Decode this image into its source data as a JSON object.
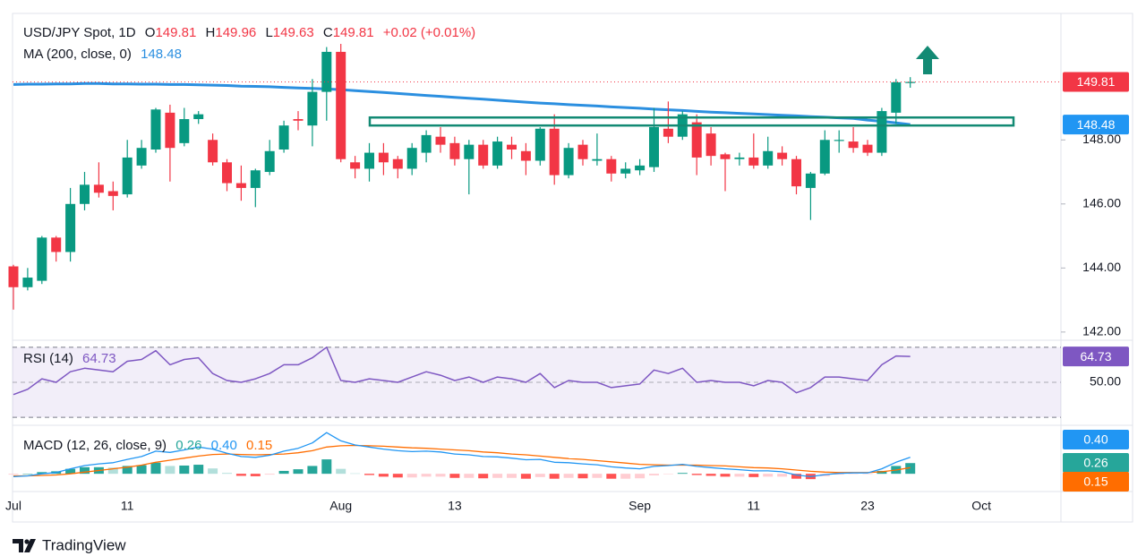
{
  "chart_data": [
    {
      "type": "candlestick",
      "symbol": "USD/JPY Spot, 1D",
      "ohlc_prefixes": [
        "O",
        "H",
        "L",
        "C"
      ],
      "change": "+0.02 (+0.01%)",
      "ma_label": "MA (200, close, 0)",
      "categories": [
        "Jul",
        null,
        null,
        null,
        null,
        null,
        null,
        null,
        "11",
        null,
        null,
        null,
        null,
        null,
        null,
        null,
        null,
        null,
        null,
        null,
        null,
        null,
        null,
        "Aug",
        null,
        null,
        null,
        null,
        null,
        null,
        null,
        "13",
        null,
        null,
        null,
        null,
        null,
        null,
        null,
        null,
        null,
        null,
        null,
        null,
        "Sep",
        null,
        null,
        null,
        null,
        null,
        null,
        null,
        "11",
        null,
        null,
        null,
        null,
        null,
        null,
        null,
        "23",
        null,
        null,
        null,
        null,
        null,
        null,
        null,
        "Oct",
        null,
        null,
        null,
        null,
        null
      ],
      "open": [
        144.05,
        143.4,
        143.6,
        144.95,
        144.5,
        146.0,
        146.6,
        146.4,
        146.3,
        147.2,
        147.7,
        148.85,
        147.9,
        148.65,
        148.0,
        147.3,
        146.65,
        146.5,
        147.0,
        147.7,
        148.65,
        148.45,
        149.5,
        150.75,
        147.3,
        147.1,
        147.6,
        147.4,
        147.1,
        147.6,
        148.1,
        147.9,
        147.4,
        147.85,
        147.2,
        147.85,
        147.65,
        147.35,
        148.35,
        146.9,
        147.85,
        147.35,
        147.4,
        146.95,
        147.05,
        147.15,
        148.35,
        148.1,
        148.55,
        148.2,
        147.55,
        147.4,
        147.45,
        147.2,
        147.6,
        147.4,
        146.5,
        146.95,
        148.0,
        147.95,
        147.85,
        147.6,
        148.85,
        149.81,
        null,
        null,
        null,
        null,
        null,
        null,
        null,
        null,
        null,
        null
      ],
      "high": [
        144.1,
        144.0,
        145.0,
        145.0,
        146.5,
        147.0,
        147.3,
        146.7,
        148.0,
        148.0,
        149.0,
        149.1,
        149.0,
        148.9,
        148.2,
        147.4,
        147.2,
        147.1,
        148.0,
        148.6,
        148.9,
        149.9,
        150.9,
        151.0,
        147.5,
        147.9,
        147.9,
        147.5,
        147.9,
        148.3,
        148.4,
        148.1,
        148.0,
        148.0,
        148.1,
        148.1,
        147.9,
        148.4,
        148.8,
        147.9,
        148.0,
        148.2,
        147.5,
        147.3,
        147.4,
        149.0,
        149.2,
        148.9,
        148.8,
        148.4,
        147.6,
        147.6,
        148.2,
        148.1,
        147.8,
        147.5,
        147.0,
        148.3,
        148.3,
        148.4,
        148.0,
        149.0,
        149.9,
        149.96,
        null,
        null,
        null,
        null,
        null,
        null,
        null,
        null,
        null,
        null
      ],
      "low": [
        142.7,
        143.3,
        143.5,
        144.2,
        144.2,
        145.8,
        146.2,
        145.8,
        146.2,
        147.1,
        147.6,
        146.7,
        147.8,
        148.5,
        147.2,
        146.4,
        146.1,
        145.9,
        146.9,
        147.6,
        148.3,
        147.8,
        148.6,
        147.3,
        146.8,
        146.7,
        146.9,
        146.8,
        146.9,
        147.3,
        147.6,
        147.2,
        146.3,
        147.1,
        147.1,
        147.4,
        146.9,
        147.2,
        146.6,
        146.8,
        147.2,
        147.2,
        146.7,
        146.8,
        146.9,
        147.0,
        147.9,
        148.0,
        146.9,
        147.2,
        146.4,
        147.2,
        147.1,
        147.1,
        147.2,
        146.3,
        145.5,
        146.9,
        147.6,
        147.6,
        147.5,
        147.5,
        148.5,
        149.63,
        null,
        null,
        null,
        null,
        null,
        null,
        null,
        null,
        null,
        null
      ],
      "close": [
        143.4,
        143.7,
        144.95,
        144.5,
        146.0,
        146.6,
        146.35,
        146.25,
        147.45,
        147.75,
        148.95,
        147.75,
        148.65,
        148.8,
        147.3,
        146.65,
        146.5,
        147.05,
        147.65,
        148.45,
        148.6,
        149.5,
        150.75,
        147.4,
        147.1,
        147.6,
        147.3,
        147.1,
        147.75,
        148.15,
        147.85,
        147.4,
        147.85,
        147.2,
        147.95,
        147.7,
        147.35,
        148.35,
        146.9,
        147.75,
        147.4,
        147.4,
        146.95,
        147.1,
        147.2,
        148.4,
        148.1,
        148.8,
        147.45,
        147.5,
        147.4,
        147.45,
        147.2,
        147.65,
        147.4,
        146.55,
        146.95,
        148.0,
        148.0,
        147.75,
        147.6,
        148.9,
        149.8,
        149.81,
        null,
        null,
        null,
        null,
        null,
        null,
        null,
        null,
        null,
        null
      ],
      "ma": [
        149.73,
        149.74,
        149.74,
        149.75,
        149.75,
        149.76,
        149.76,
        149.75,
        149.75,
        149.74,
        149.74,
        149.73,
        149.73,
        149.72,
        149.71,
        149.7,
        149.68,
        149.67,
        149.66,
        149.64,
        149.62,
        149.61,
        149.59,
        149.57,
        149.54,
        149.51,
        149.48,
        149.45,
        149.42,
        149.39,
        149.36,
        149.33,
        149.3,
        149.27,
        149.24,
        149.21,
        149.18,
        149.15,
        149.13,
        149.1,
        149.08,
        149.06,
        149.03,
        149.01,
        148.99,
        148.96,
        148.94,
        148.92,
        148.89,
        148.87,
        148.85,
        148.83,
        148.81,
        148.79,
        148.77,
        148.75,
        148.73,
        148.71,
        148.69,
        148.67,
        148.62,
        148.58,
        148.53,
        148.48,
        null,
        null,
        null,
        null,
        null,
        null,
        null,
        null,
        null,
        null
      ],
      "zone": [
        148.45,
        148.7
      ],
      "ylim": [
        141.8,
        151.95
      ],
      "yticks": [
        {
          "value": 142,
          "label": "142.00"
        },
        {
          "value": 144,
          "label": "144.00"
        },
        {
          "value": 146,
          "label": "146.00"
        },
        {
          "value": 148,
          "label": "148.00"
        }
      ],
      "colors": {
        "up": "#089981",
        "down": "#f23645",
        "ma": "#2b8fe0",
        "zone": "#138a74",
        "last_price": "#f23645"
      }
    },
    {
      "type": "line",
      "title": "RSI (14)",
      "values": [
        43,
        46,
        52,
        50,
        56,
        58,
        57,
        56,
        62,
        63,
        68,
        60,
        63,
        64,
        55,
        51,
        50,
        52,
        55,
        60,
        60,
        64,
        70,
        51,
        50,
        52,
        51,
        50,
        53,
        56,
        54,
        51,
        53,
        50,
        53,
        52,
        50,
        55,
        47,
        51,
        50,
        50,
        47,
        48,
        49,
        57,
        55,
        58,
        50,
        51,
        50,
        50,
        48,
        51,
        50,
        44,
        47,
        53,
        53,
        52,
        51,
        60,
        65,
        64.73,
        null,
        null,
        null,
        null,
        null,
        null,
        null,
        null,
        null,
        null
      ],
      "color": "#7e57c2",
      "levels": [
        30,
        70
      ],
      "ylim": [
        27,
        74
      ],
      "yticks": [
        {
          "value": 50,
          "label": "50.00"
        }
      ]
    },
    {
      "type": "macd",
      "title": "MACD (12, 26, close, 9)",
      "series": [
        {
          "name": "Histogram",
          "values": [
            -0.02,
            0.0,
            0.04,
            0.06,
            0.12,
            0.16,
            0.16,
            0.15,
            0.19,
            0.21,
            0.27,
            0.19,
            0.2,
            0.22,
            0.13,
            0.02,
            -0.05,
            -0.06,
            -0.02,
            0.07,
            0.11,
            0.19,
            0.35,
            0.12,
            0.01,
            -0.03,
            -0.07,
            -0.09,
            -0.09,
            -0.07,
            -0.07,
            -0.1,
            -0.1,
            -0.11,
            -0.1,
            -0.1,
            -0.12,
            -0.08,
            -0.12,
            -0.1,
            -0.11,
            -0.1,
            -0.12,
            -0.12,
            -0.11,
            -0.04,
            -0.01,
            0.02,
            -0.03,
            -0.05,
            -0.07,
            -0.07,
            -0.08,
            -0.07,
            -0.07,
            -0.12,
            -0.13,
            -0.06,
            -0.02,
            -0.01,
            -0.01,
            0.07,
            0.19,
            0.26,
            null,
            null,
            null,
            null,
            null,
            null,
            null,
            null,
            null,
            null
          ]
        },
        {
          "name": "MACD",
          "color": "#2196f3",
          "values": [
            -0.07,
            -0.05,
            0.0,
            0.03,
            0.12,
            0.2,
            0.24,
            0.27,
            0.35,
            0.42,
            0.55,
            0.52,
            0.58,
            0.65,
            0.6,
            0.5,
            0.42,
            0.4,
            0.45,
            0.55,
            0.62,
            0.75,
            1.0,
            0.8,
            0.7,
            0.65,
            0.6,
            0.56,
            0.54,
            0.55,
            0.53,
            0.48,
            0.46,
            0.42,
            0.41,
            0.38,
            0.34,
            0.35,
            0.28,
            0.27,
            0.24,
            0.22,
            0.17,
            0.14,
            0.12,
            0.18,
            0.2,
            0.23,
            0.18,
            0.15,
            0.12,
            0.1,
            0.07,
            0.07,
            0.05,
            -0.03,
            -0.07,
            -0.02,
            0.01,
            0.02,
            0.02,
            0.12,
            0.28,
            0.4,
            null,
            null,
            null,
            null,
            null,
            null,
            null,
            null,
            null,
            null
          ]
        },
        {
          "name": "Signal",
          "color": "#ff6d00",
          "values": [
            -0.05,
            -0.05,
            -0.04,
            -0.03,
            0.0,
            0.04,
            0.08,
            0.12,
            0.16,
            0.21,
            0.28,
            0.33,
            0.38,
            0.43,
            0.47,
            0.48,
            0.47,
            0.46,
            0.47,
            0.48,
            0.51,
            0.56,
            0.65,
            0.68,
            0.69,
            0.68,
            0.67,
            0.65,
            0.63,
            0.62,
            0.6,
            0.58,
            0.56,
            0.53,
            0.51,
            0.48,
            0.46,
            0.43,
            0.4,
            0.37,
            0.35,
            0.32,
            0.29,
            0.26,
            0.23,
            0.22,
            0.21,
            0.21,
            0.21,
            0.2,
            0.19,
            0.17,
            0.15,
            0.14,
            0.12,
            0.09,
            0.06,
            0.04,
            0.03,
            0.03,
            0.03,
            0.05,
            0.09,
            0.15,
            null,
            null,
            null,
            null,
            null,
            null,
            null,
            null,
            null,
            null
          ]
        }
      ],
      "readout": [
        0.26,
        {
          "value": 0.4,
          "label": "0.40"
        },
        0.15
      ],
      "hist_colors": {
        "grow_pos": "#26a69a",
        "fall_pos": "#b2dfdb",
        "grow_neg": "#ffcdd2",
        "fall_neg": "#ff5252"
      },
      "ylim": [
        -0.41,
        1.07
      ]
    }
  ],
  "footer": {
    "brand": "TradingView"
  }
}
